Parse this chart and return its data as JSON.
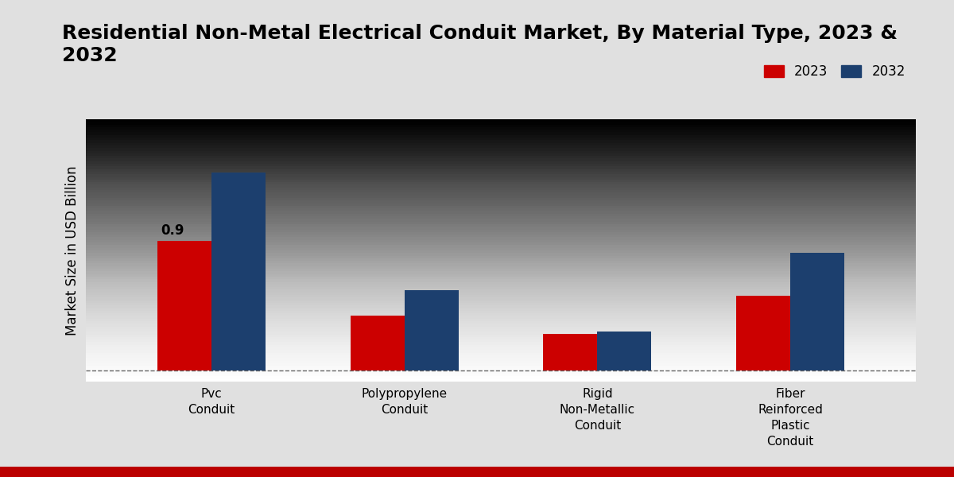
{
  "title": "Residential Non-Metal Electrical Conduit Market, By Material Type, 2023 &\n2032",
  "ylabel": "Market Size in USD Billion",
  "categories": [
    "Pvc\nConduit",
    "Polypropylene\nConduit",
    "Rigid\nNon-Metallic\nConduit",
    "Fiber\nReinforced\nPlastic\nConduit"
  ],
  "values_2023": [
    0.9,
    0.38,
    0.25,
    0.52
  ],
  "values_2032": [
    1.38,
    0.56,
    0.27,
    0.82
  ],
  "color_2023": "#cc0000",
  "color_2032": "#1c3f6e",
  "bar_width": 0.28,
  "annotation_2023_pvc": "0.9",
  "legend_labels": [
    "2023",
    "2032"
  ],
  "background_top": "#d8d8d8",
  "background_bottom": "#e8e8e8",
  "title_fontsize": 18,
  "ylabel_fontsize": 12,
  "tick_fontsize": 11,
  "legend_fontsize": 12,
  "annotation_fontsize": 12,
  "bottom_bar_color": "#bb0000",
  "ylim": [
    -0.08,
    1.75
  ]
}
